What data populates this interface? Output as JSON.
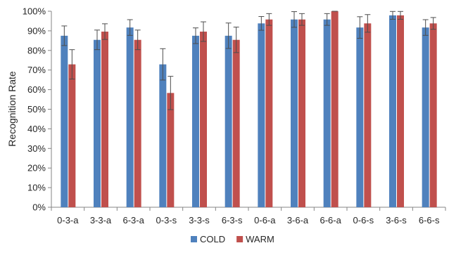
{
  "chart_data": {
    "type": "bar",
    "title": "",
    "xlabel": "",
    "ylabel": "Recognition Rate",
    "ylim": [
      0,
      100
    ],
    "ytick_step": 10,
    "ytick_suffix": "%",
    "grid": false,
    "legend": "bottom",
    "error_bars": true,
    "categories": [
      "0-3-a",
      "3-3-a",
      "6-3-a",
      "0-3-s",
      "3-3-s",
      "6-3-s",
      "0-6-a",
      "3-6-a",
      "6-6-a",
      "0-6-s",
      "3-6-s",
      "6-6-s"
    ],
    "series": [
      {
        "name": "COLD",
        "color": "#4f81bd",
        "values": [
          87.5,
          85.4,
          91.7,
          72.9,
          87.5,
          87.5,
          93.8,
          95.8,
          95.8,
          91.7,
          97.9,
          91.7
        ],
        "errors": [
          5,
          5,
          4,
          8,
          4,
          6.5,
          3.5,
          4,
          3,
          5.5,
          2,
          4
        ]
      },
      {
        "name": "WARM",
        "color": "#c0504d",
        "values": [
          72.9,
          89.6,
          85.4,
          58.3,
          89.6,
          85.4,
          95.8,
          95.8,
          100,
          93.8,
          97.9,
          93.8
        ],
        "errors": [
          7.5,
          4,
          5,
          8.5,
          5,
          6.5,
          3,
          3,
          0,
          4.5,
          2,
          3
        ]
      }
    ]
  }
}
